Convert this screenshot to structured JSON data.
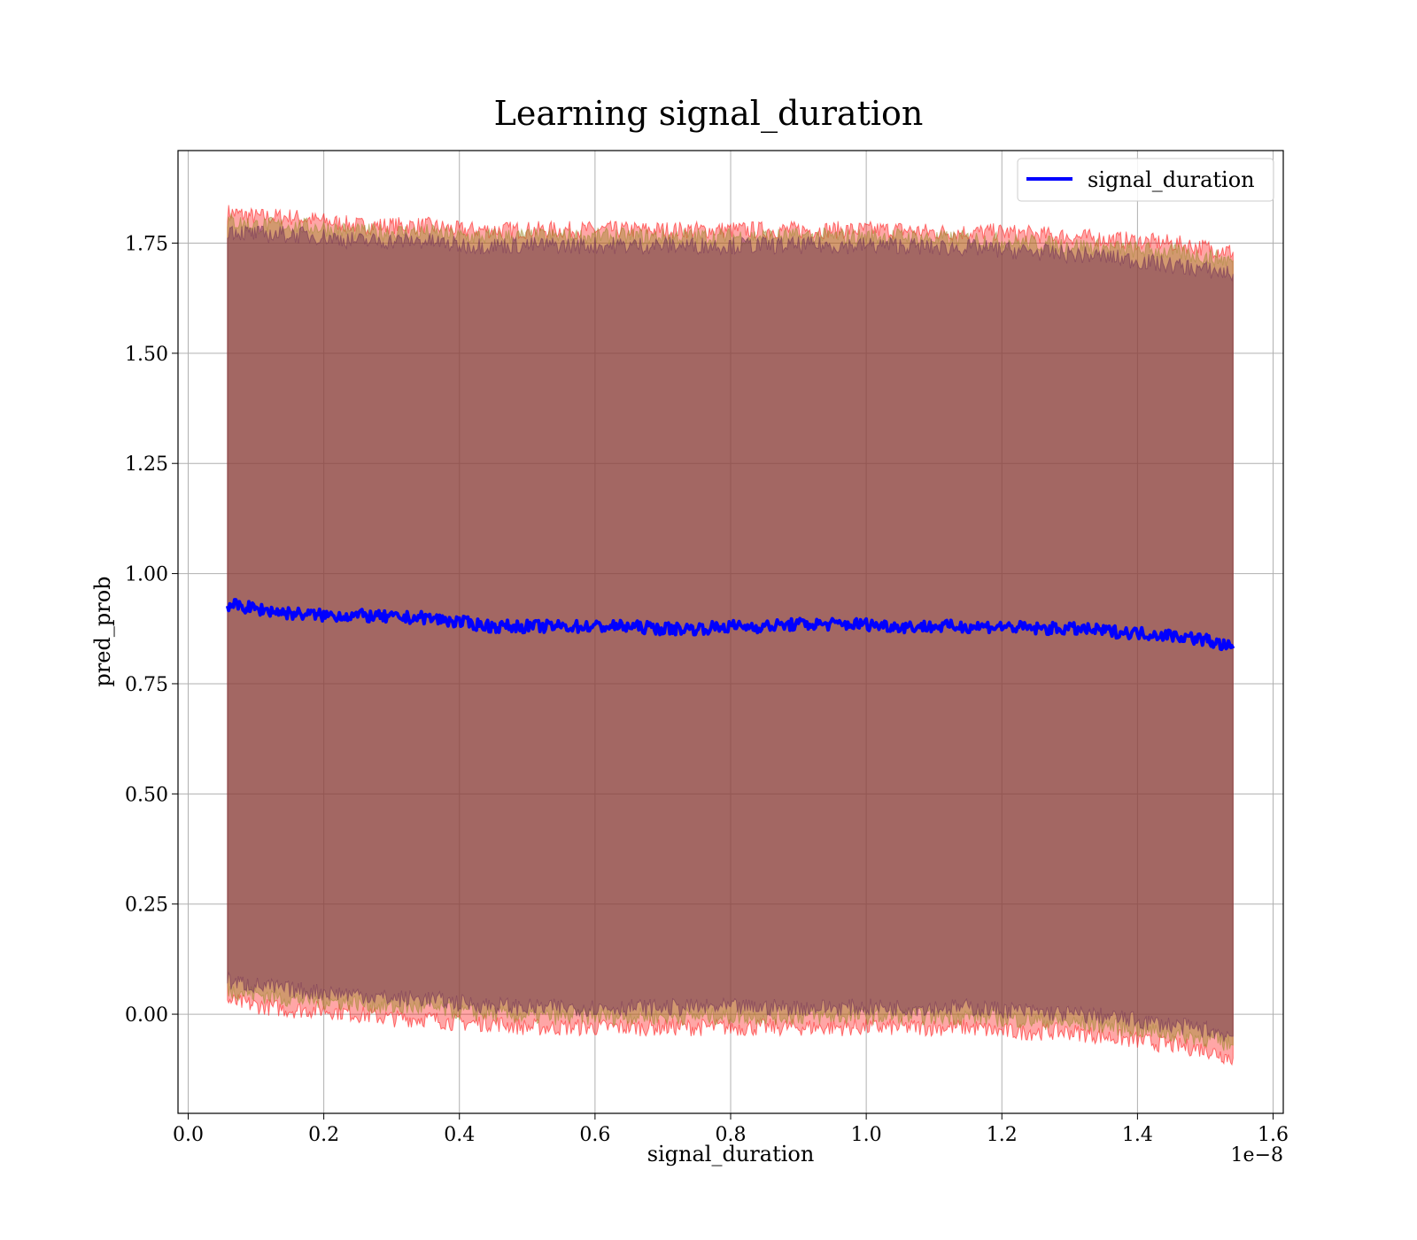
{
  "chart_data": {
    "type": "line",
    "title": "Learning signal_duration",
    "xlabel": "signal_duration",
    "ylabel": "pred_prob",
    "x_offset_text": "1e−8",
    "xlim": [
      -0.015,
      1.615
    ],
    "ylim": [
      -0.225,
      1.96
    ],
    "x_ticks": [
      0.0,
      0.2,
      0.4,
      0.6,
      0.8,
      1.0,
      1.2,
      1.4,
      1.6
    ],
    "x_tick_labels": [
      "0.0",
      "0.2",
      "0.4",
      "0.6",
      "0.8",
      "1.0",
      "1.2",
      "1.4",
      "1.6"
    ],
    "y_ticks": [
      0.0,
      0.25,
      0.5,
      0.75,
      1.0,
      1.25,
      1.5,
      1.75
    ],
    "y_tick_labels": [
      "0.00",
      "0.25",
      "0.50",
      "0.75",
      "1.00",
      "1.25",
      "1.50",
      "1.75"
    ],
    "grid": true,
    "legend": {
      "placement": "top-right",
      "entries": [
        "signal_duration"
      ]
    },
    "series": [
      {
        "name": "signal_duration",
        "color": "#0000ff",
        "x": [
          0.058,
          0.1,
          0.15,
          0.2,
          0.25,
          0.3,
          0.35,
          0.4,
          0.45,
          0.5,
          0.55,
          0.6,
          0.65,
          0.7,
          0.75,
          0.8,
          0.85,
          0.9,
          0.95,
          1.0,
          1.05,
          1.1,
          1.15,
          1.2,
          1.25,
          1.3,
          1.35,
          1.4,
          1.45,
          1.5,
          1.541
        ],
        "y": [
          0.93,
          0.92,
          0.91,
          0.905,
          0.905,
          0.9,
          0.9,
          0.89,
          0.88,
          0.88,
          0.88,
          0.88,
          0.88,
          0.875,
          0.875,
          0.88,
          0.88,
          0.885,
          0.885,
          0.885,
          0.88,
          0.88,
          0.88,
          0.88,
          0.875,
          0.875,
          0.87,
          0.865,
          0.86,
          0.85,
          0.83
        ]
      }
    ],
    "bands": [
      {
        "color": "#ff0000",
        "opacity": 0.35,
        "upper": [
          1.82,
          1.81,
          1.81,
          1.8,
          1.79,
          1.79,
          1.79,
          1.78,
          1.78,
          1.78,
          1.78,
          1.78,
          1.78,
          1.78,
          1.78,
          1.78,
          1.78,
          1.78,
          1.78,
          1.78,
          1.78,
          1.775,
          1.775,
          1.775,
          1.77,
          1.765,
          1.76,
          1.755,
          1.75,
          1.74,
          1.73
        ],
        "lower": [
          0.03,
          0.02,
          0.01,
          0.01,
          0.0,
          -0.01,
          -0.01,
          -0.02,
          -0.02,
          -0.03,
          -0.03,
          -0.03,
          -0.03,
          -0.03,
          -0.03,
          -0.03,
          -0.03,
          -0.03,
          -0.03,
          -0.03,
          -0.03,
          -0.03,
          -0.03,
          -0.04,
          -0.04,
          -0.04,
          -0.05,
          -0.06,
          -0.07,
          -0.08,
          -0.1
        ]
      },
      {
        "color": "#9b8a2c",
        "opacity": 0.45,
        "upper": [
          1.8,
          1.79,
          1.79,
          1.785,
          1.775,
          1.775,
          1.775,
          1.765,
          1.765,
          1.765,
          1.765,
          1.765,
          1.765,
          1.765,
          1.765,
          1.765,
          1.765,
          1.765,
          1.765,
          1.765,
          1.765,
          1.76,
          1.76,
          1.755,
          1.75,
          1.745,
          1.74,
          1.735,
          1.73,
          1.72,
          1.71
        ],
        "lower": [
          0.055,
          0.045,
          0.035,
          0.03,
          0.025,
          0.015,
          0.015,
          0.005,
          0.0,
          -0.005,
          -0.005,
          -0.005,
          -0.005,
          -0.005,
          -0.005,
          -0.005,
          -0.005,
          -0.005,
          -0.005,
          -0.005,
          -0.005,
          -0.005,
          -0.005,
          -0.01,
          -0.015,
          -0.02,
          -0.025,
          -0.035,
          -0.045,
          -0.055,
          -0.07
        ]
      },
      {
        "color": "#6b2a55",
        "opacity": 0.45,
        "upper": [
          1.78,
          1.77,
          1.77,
          1.765,
          1.755,
          1.755,
          1.755,
          1.745,
          1.745,
          1.745,
          1.745,
          1.745,
          1.745,
          1.745,
          1.745,
          1.745,
          1.745,
          1.745,
          1.745,
          1.745,
          1.745,
          1.74,
          1.74,
          1.735,
          1.73,
          1.725,
          1.72,
          1.71,
          1.7,
          1.69,
          1.68
        ],
        "lower": [
          0.075,
          0.065,
          0.055,
          0.05,
          0.045,
          0.035,
          0.035,
          0.025,
          0.02,
          0.015,
          0.015,
          0.015,
          0.015,
          0.015,
          0.015,
          0.015,
          0.015,
          0.015,
          0.015,
          0.015,
          0.015,
          0.015,
          0.015,
          0.01,
          0.005,
          0.0,
          -0.005,
          -0.015,
          -0.025,
          -0.035,
          -0.05
        ]
      }
    ]
  }
}
